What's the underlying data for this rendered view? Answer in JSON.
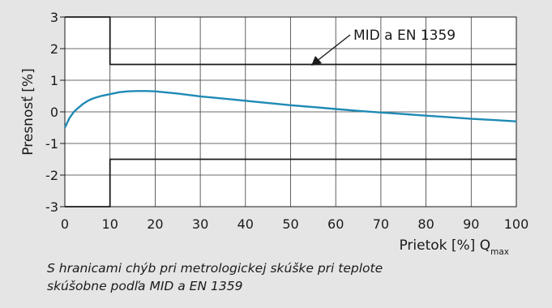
{
  "chart_data": {
    "type": "line",
    "title": "",
    "ylabel": "Presnosť [%]",
    "xlabel": "Prietok [%] Q",
    "xlabel_sub": "max",
    "xlim": [
      0,
      100
    ],
    "ylim": [
      -3,
      3
    ],
    "xticks": [
      0,
      10,
      20,
      30,
      40,
      50,
      60,
      70,
      80,
      90,
      100
    ],
    "yticks": [
      -3,
      -2,
      -1,
      0,
      1,
      2,
      3
    ],
    "grid": true,
    "annotation": "MID a EN 1359",
    "series": [
      {
        "role": "measured-curve",
        "color": "#1f8ab5",
        "x": [
          0,
          1,
          2,
          3,
          4,
          5,
          6,
          7,
          8,
          9,
          10,
          12,
          14,
          16,
          18,
          20,
          25,
          30,
          35,
          40,
          45,
          50,
          55,
          60,
          65,
          70,
          75,
          80,
          85,
          90,
          95,
          100
        ],
        "y": [
          -0.5,
          -0.2,
          0.0,
          0.13,
          0.25,
          0.34,
          0.41,
          0.46,
          0.5,
          0.53,
          0.56,
          0.62,
          0.65,
          0.66,
          0.66,
          0.65,
          0.58,
          0.49,
          0.42,
          0.35,
          0.28,
          0.21,
          0.15,
          0.09,
          0.03,
          -0.02,
          -0.07,
          -0.12,
          -0.17,
          -0.22,
          -0.26,
          -0.3
        ]
      },
      {
        "role": "upper-error-limit",
        "color": "#1a1a1a",
        "x": [
          0,
          10,
          10,
          100
        ],
        "y": [
          3,
          3,
          1.5,
          1.5
        ]
      },
      {
        "role": "lower-error-limit",
        "color": "#1a1a1a",
        "x": [
          0,
          10,
          10,
          100
        ],
        "y": [
          -3,
          -3,
          -1.5,
          -1.5
        ]
      }
    ]
  },
  "caption": {
    "line1": "S hranicami chýb pri metrologickej skúške pri teplote",
    "line2": "skúšobne podľa MID a EN 1359"
  }
}
